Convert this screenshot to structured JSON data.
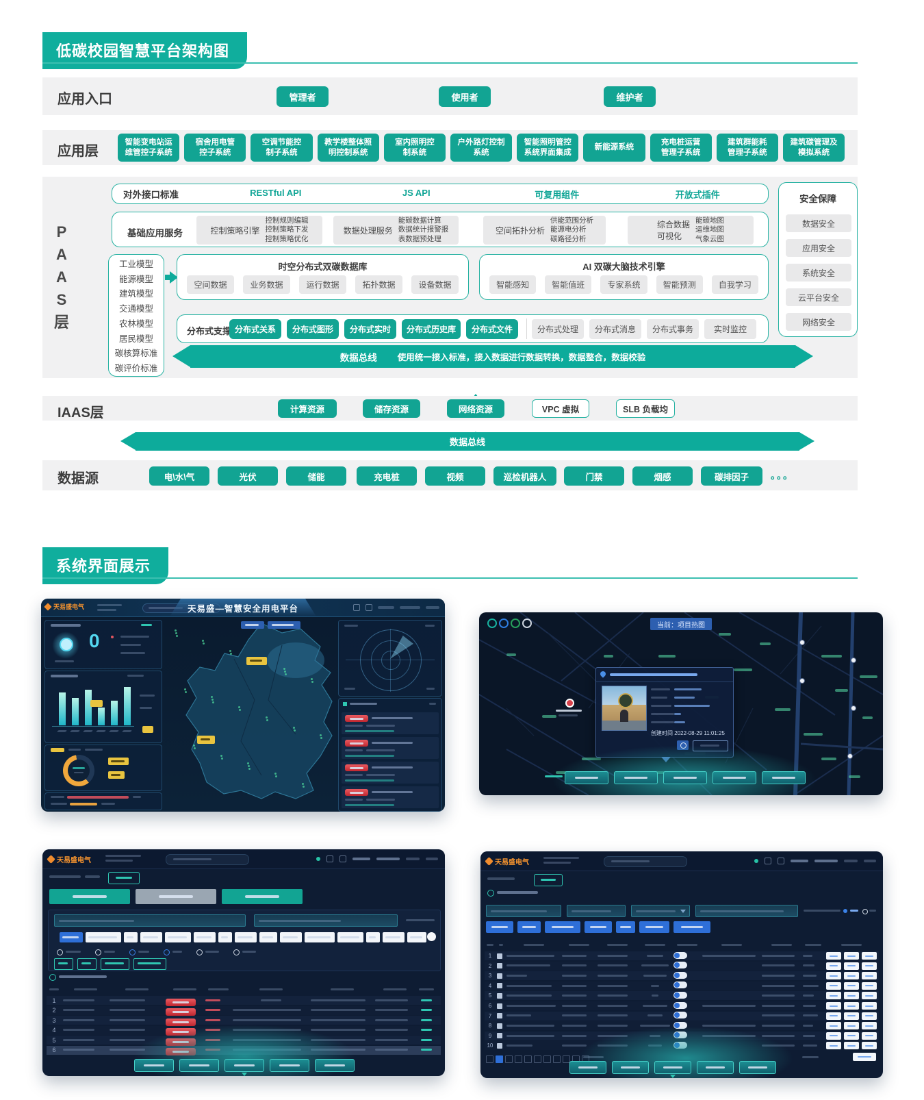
{
  "sections": {
    "architecture": "低碳校园智慧平台架构图",
    "showcase": "系统界面展示"
  },
  "entry": {
    "label": "应用入口",
    "roles": [
      "管理者",
      "使用者",
      "维护者"
    ]
  },
  "app": {
    "label": "应用层",
    "systems": [
      "智能变电站运\n维管控子系统",
      "宿舍用电管\n控子系统",
      "空调节能控\n制子系统",
      "教学楼整体照\n明控制系统",
      "室内照明控\n制系统",
      "户外路灯控制\n系统",
      "智能照明管控\n系统界面集成",
      "新能源系统",
      "充电桩运营\n管理子系统",
      "建筑群能耗\n管理子系统",
      "建筑碳管理及\n模拟系统"
    ]
  },
  "paas": {
    "layer_label": "P\nA\nA\nS\n层",
    "interface": {
      "label": "对外接口标准",
      "items": [
        "RESTful API",
        "JS API",
        "可复用组件",
        "开放式插件"
      ]
    },
    "services": {
      "label": "基础应用服务",
      "groups": [
        {
          "name": "控制策略引擎",
          "details": "控制规则编辑\n控制策略下发\n控制策略优化"
        },
        {
          "name": "数据处理服务",
          "details": "能碳数据计算\n数据统计报警报\n表数据预处理"
        },
        {
          "name": "空间拓扑分析",
          "details": "供能范围分析\n能源电分析\n碳路径分析"
        },
        {
          "name": "综合数据\n可视化",
          "details": "能碳地图\n运维地图\n气象云图"
        }
      ]
    },
    "models": {
      "items": [
        "工业模型",
        "能源模型",
        "建筑模型",
        "交通模型",
        "农林模型",
        "居民模型",
        "碳核算标准",
        "碳评价标准"
      ]
    },
    "database": {
      "title": "时空分布式双碳数据库",
      "items": [
        "空间数据",
        "业务数据",
        "运行数据",
        "拓扑数据",
        "设备数据"
      ]
    },
    "ai": {
      "title": "AI 双碳大脑技术引擎",
      "items": [
        "智能感知",
        "智能值班",
        "专家系统",
        "智能预测",
        "自我学习"
      ]
    },
    "distributed": {
      "label": "分布式支撑",
      "primary": [
        "分布式关系",
        "分布式图形",
        "分布式实时",
        "分布式历史库",
        "分布式文件"
      ],
      "secondary": [
        "分布式处理",
        "分布式消息",
        "分布式事务",
        "实时监控"
      ]
    },
    "security": {
      "title": "安全保障",
      "items": [
        "数据安全",
        "应用安全",
        "系统安全",
        "云平台安全",
        "网络安全"
      ]
    },
    "bus": {
      "title": "数据总线",
      "desc": "使用统一接入标准，接入数据进行数据转换，数据整合，数据校验"
    }
  },
  "iaas": {
    "label": "IAAS层",
    "resources": [
      "计算资源",
      "储存资源",
      "网络资源"
    ],
    "outlined": [
      "VPC 虚拟",
      "SLB 负载均"
    ]
  },
  "bus2": {
    "title": "数据总线"
  },
  "datasource": {
    "label": "数据源",
    "items": [
      "电\\水\\气",
      "光伏",
      "储能",
      "充电桩",
      "视频",
      "巡检机器人",
      "门禁",
      "烟感",
      "碳排因子"
    ],
    "more": "。。。"
  },
  "screens": {
    "platform": {
      "logo": "天易盛电气",
      "title": "天易盛—智慧安全用电平台",
      "kpi_value": "0"
    },
    "heatmap": {
      "tab": "当前：项目热图",
      "created": "创建时间 2022-08-29 11:01:25"
    },
    "records": {
      "logo": "天易盛电气",
      "rows": [
        {
          "seq": "1"
        },
        {
          "seq": "2"
        },
        {
          "seq": "3"
        },
        {
          "seq": "4"
        },
        {
          "seq": "5"
        },
        {
          "seq": "6"
        }
      ]
    },
    "devices": {
      "logo": "天易盛电气",
      "rows": [
        {
          "seq": "1"
        },
        {
          "seq": "2"
        },
        {
          "seq": "3"
        },
        {
          "seq": "4"
        },
        {
          "seq": "5"
        },
        {
          "seq": "6"
        },
        {
          "seq": "7"
        },
        {
          "seq": "8"
        },
        {
          "seq": "9"
        },
        {
          "seq": "10"
        }
      ]
    }
  }
}
